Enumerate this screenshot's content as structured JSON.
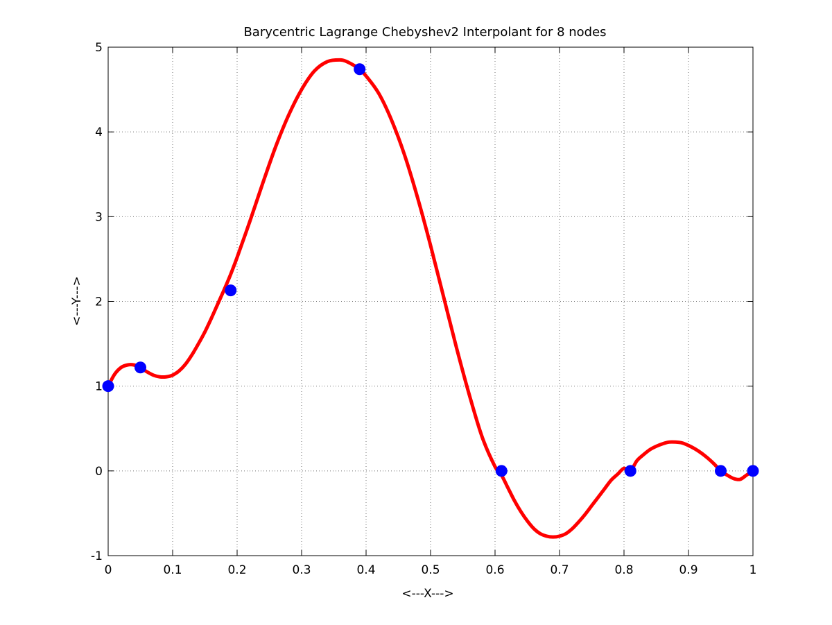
{
  "chart_data": {
    "type": "line",
    "title": "Barycentric Lagrange Chebyshev2 Interpolant for 8 nodes",
    "xlabel": "<---X--->",
    "ylabel": "<---Y--->",
    "xlim": [
      0,
      1
    ],
    "ylim": [
      -1,
      5
    ],
    "xticks": [
      "0",
      "0.1",
      "0.2",
      "0.3",
      "0.4",
      "0.5",
      "0.6",
      "0.7",
      "0.8",
      "0.9",
      "1"
    ],
    "yticks": [
      "-1",
      "0",
      "1",
      "2",
      "3",
      "4",
      "5"
    ],
    "grid": true,
    "series": [
      {
        "kind": "markers",
        "color": "#0000ff",
        "x": [
          0,
          0.05,
          0.19,
          0.39,
          0.61,
          0.81,
          0.95,
          1
        ],
        "y": [
          1,
          1.22,
          2.13,
          4.74,
          0,
          0,
          0,
          0
        ]
      },
      {
        "kind": "curve",
        "color": "#ff0000",
        "x": [
          0,
          0.01,
          0.02,
          0.03,
          0.04,
          0.05,
          0.06,
          0.07,
          0.08,
          0.09,
          0.1,
          0.11,
          0.12,
          0.13,
          0.14,
          0.15,
          0.16,
          0.17,
          0.18,
          0.19,
          0.2,
          0.22,
          0.24,
          0.26,
          0.28,
          0.3,
          0.32,
          0.34,
          0.36,
          0.37,
          0.38,
          0.39,
          0.4,
          0.42,
          0.44,
          0.46,
          0.48,
          0.5,
          0.52,
          0.54,
          0.56,
          0.58,
          0.6,
          0.61,
          0.62,
          0.63,
          0.64,
          0.65,
          0.66,
          0.67,
          0.68,
          0.69,
          0.7,
          0.71,
          0.72,
          0.73,
          0.74,
          0.75,
          0.76,
          0.77,
          0.78,
          0.79,
          0.8,
          0.81,
          0.82,
          0.83,
          0.84,
          0.85,
          0.86,
          0.87,
          0.88,
          0.89,
          0.9,
          0.91,
          0.92,
          0.93,
          0.94,
          0.95,
          0.96,
          0.97,
          0.98,
          0.99,
          1.0
        ],
        "y": [
          1.0,
          1.14,
          1.22,
          1.25,
          1.25,
          1.22,
          1.17,
          1.13,
          1.11,
          1.11,
          1.13,
          1.18,
          1.26,
          1.37,
          1.5,
          1.64,
          1.8,
          1.97,
          2.14,
          2.32,
          2.52,
          2.95,
          3.4,
          3.83,
          4.2,
          4.5,
          4.72,
          4.83,
          4.85,
          4.83,
          4.79,
          4.74,
          4.66,
          4.45,
          4.13,
          3.72,
          3.22,
          2.66,
          2.06,
          1.46,
          0.9,
          0.4,
          0.05,
          -0.05,
          -0.2,
          -0.35,
          -0.48,
          -0.59,
          -0.68,
          -0.74,
          -0.77,
          -0.78,
          -0.77,
          -0.74,
          -0.68,
          -0.6,
          -0.51,
          -0.41,
          -0.31,
          -0.21,
          -0.11,
          -0.04,
          0.03,
          0.0,
          0.12,
          0.19,
          0.25,
          0.29,
          0.32,
          0.34,
          0.34,
          0.33,
          0.3,
          0.26,
          0.21,
          0.15,
          0.08,
          0.0,
          -0.05,
          -0.09,
          -0.1,
          -0.05,
          0.0
        ]
      }
    ]
  }
}
